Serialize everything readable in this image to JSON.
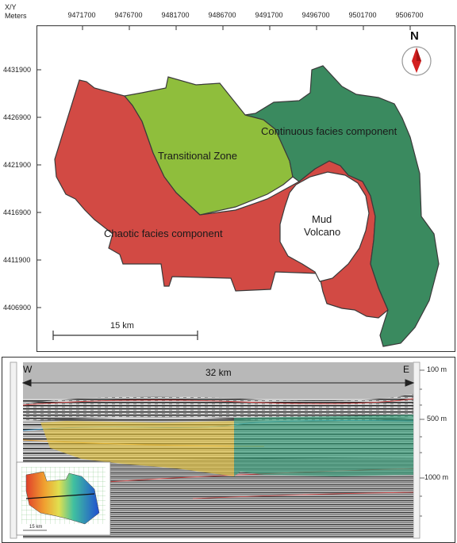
{
  "map": {
    "axis_title_line1": "X/Y",
    "axis_title_line2": "Meters",
    "x_ticks": [
      "9471700",
      "9476700",
      "9481700",
      "9486700",
      "9491700",
      "9496700",
      "9501700",
      "9506700"
    ],
    "y_ticks": [
      "4431900",
      "4426900",
      "4421900",
      "4416900",
      "4411900",
      "4406900"
    ],
    "north_label": "N",
    "scale_label": "15 km",
    "regions": {
      "transitional": "Transitional Zone",
      "continuous": "Continuous facies component",
      "chaotic": "Chaotic facies component",
      "mud_line1": "Mud",
      "mud_line2": "Volcano"
    },
    "colors": {
      "chaotic": "#d24a44",
      "transitional": "#8fbe3c",
      "continuous": "#3a8a5f",
      "north_arrow": "#d32020"
    }
  },
  "seismic": {
    "west_label": "W",
    "east_label": "E",
    "distance_label": "32 km",
    "depth_labels": [
      "100 m",
      "500 m",
      "1000 m"
    ],
    "inset_scale_label": "15 km",
    "colors": {
      "yellow_body": "#e7c53a",
      "green_body": "#34a27a"
    }
  }
}
